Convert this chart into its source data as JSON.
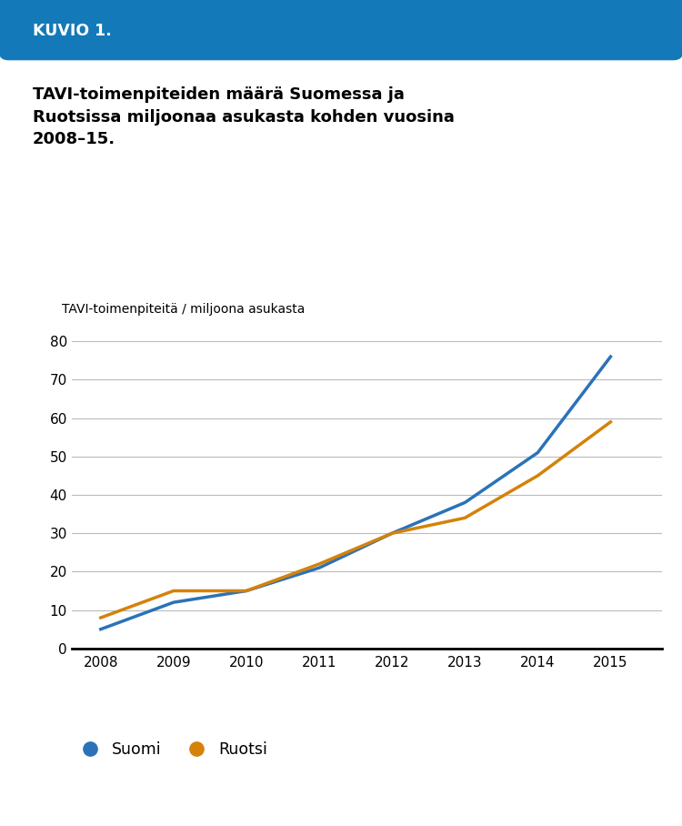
{
  "header_text": "KUVIO 1.",
  "header_bg": "#1479b8",
  "header_text_color": "#ffffff",
  "title_line1": "TAVI-toimenpiteiden määrä Suomessa ja",
  "title_line2": "Ruotsissa miljoonaa asukasta kohden vuosina",
  "title_line3": "2008–15.",
  "ylabel": "TAVI-toimenpiteitä / miljoona asukasta",
  "years": [
    2008,
    2009,
    2010,
    2011,
    2012,
    2013,
    2014,
    2015
  ],
  "suomi": [
    5,
    12,
    15,
    21,
    30,
    38,
    51,
    76
  ],
  "ruotsi": [
    8,
    15,
    15,
    22,
    30,
    34,
    45,
    59
  ],
  "suomi_color": "#2b72b8",
  "ruotsi_color": "#d4820a",
  "ylim": [
    0,
    85
  ],
  "yticks": [
    0,
    10,
    20,
    30,
    40,
    50,
    60,
    70,
    80
  ],
  "bg_color": "#ffffff",
  "legend_suomi": "Suomi",
  "legend_ruotsi": "Ruotsi",
  "line_width": 2.5
}
